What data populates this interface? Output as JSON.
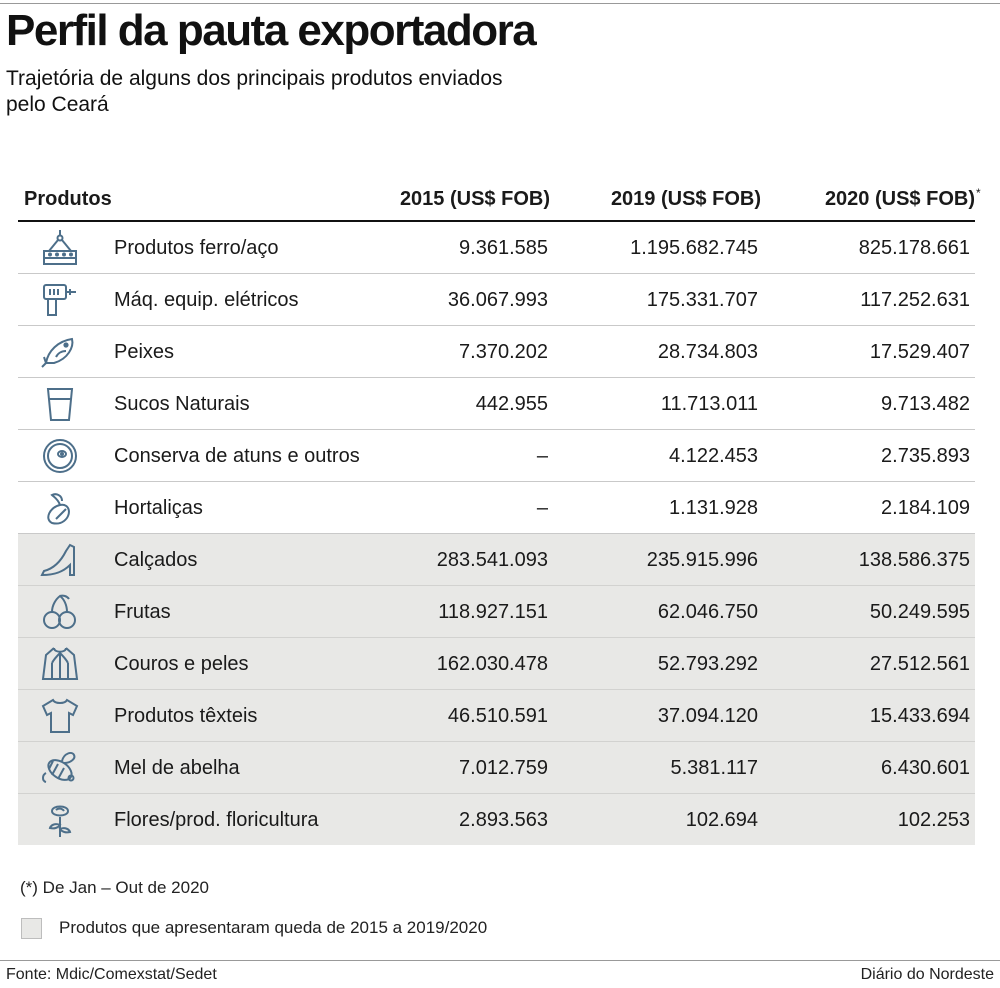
{
  "header": {
    "title": "Perfil da pauta exportadora",
    "subtitle": "Trajetória de alguns dos principais produtos enviados pelo Ceará"
  },
  "table": {
    "columns": {
      "product": "Produtos",
      "y2015": "2015 (US$ FOB)",
      "y2019": "2019 (US$ FOB)",
      "y2020": "2020 (US$ FOB)",
      "y2020_mark": "*"
    },
    "rows": [
      {
        "icon": "crane-steel-icon",
        "name": "Produtos ferro/aço",
        "y2015": "9.361.585",
        "y2019": "1.195.682.745",
        "y2020": "825.178.661",
        "fell": false
      },
      {
        "icon": "drill-icon",
        "name": "Máq. equip. elétricos",
        "y2015": "36.067.993",
        "y2019": "175.331.707",
        "y2020": "117.252.631",
        "fell": false
      },
      {
        "icon": "fish-icon",
        "name": "Peixes",
        "y2015": "7.370.202",
        "y2019": "28.734.803",
        "y2020": "17.529.407",
        "fell": false
      },
      {
        "icon": "glass-juice-icon",
        "name": "Sucos Naturais",
        "y2015": "442.955",
        "y2019": "11.713.011",
        "y2020": "9.713.482",
        "fell": false
      },
      {
        "icon": "tuna-can-icon",
        "name": "Conserva de atuns e outros",
        "y2015": "–",
        "y2019": "4.122.453",
        "y2020": "2.735.893",
        "fell": false
      },
      {
        "icon": "vegetable-icon",
        "name": "Hortaliças",
        "y2015": "–",
        "y2019": "1.131.928",
        "y2020": "2.184.109",
        "fell": false
      },
      {
        "icon": "high-heel-icon",
        "name": "Calçados",
        "y2015": "283.541.093",
        "y2019": "235.915.996",
        "y2020": "138.586.375",
        "fell": true
      },
      {
        "icon": "cherries-icon",
        "name": "Frutas",
        "y2015": "118.927.151",
        "y2019": "62.046.750",
        "y2020": "50.249.595",
        "fell": true
      },
      {
        "icon": "jacket-icon",
        "name": "Couros e peles",
        "y2015": "162.030.478",
        "y2019": "52.793.292",
        "y2020": "27.512.561",
        "fell": true
      },
      {
        "icon": "tshirt-icon",
        "name": "Produtos têxteis",
        "y2015": "46.510.591",
        "y2019": "37.094.120",
        "y2020": "15.433.694",
        "fell": true
      },
      {
        "icon": "bee-icon",
        "name": "Mel de abelha",
        "y2015": "7.012.759",
        "y2019": "5.381.117",
        "y2020": "6.430.601",
        "fell": true
      },
      {
        "icon": "rose-icon",
        "name": "Flores/prod. floricultura",
        "y2015": "2.893.563",
        "y2019": "102.694",
        "y2020": "102.253",
        "fell": true
      }
    ]
  },
  "notes": {
    "asterisk": "(*) De Jan – Out de 2020",
    "legend": "Produtos que apresentaram queda de 2015 a 2019/2020"
  },
  "footer": {
    "source": "Fonte: Mdic/Comexstat/Sedet",
    "brand": "Diário do Nordeste"
  },
  "colors": {
    "accent": "#6a8aa3",
    "highlight_row": "#e8e8e6"
  }
}
